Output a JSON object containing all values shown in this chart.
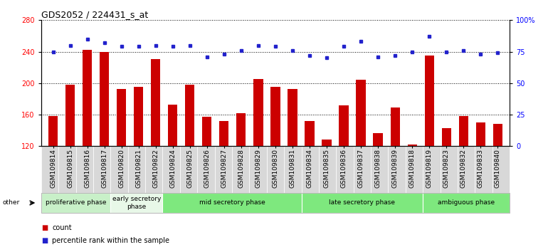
{
  "title": "GDS2052 / 224431_s_at",
  "samples": [
    "GSM109814",
    "GSM109815",
    "GSM109816",
    "GSM109817",
    "GSM109820",
    "GSM109821",
    "GSM109822",
    "GSM109824",
    "GSM109825",
    "GSM109826",
    "GSM109827",
    "GSM109828",
    "GSM109829",
    "GSM109830",
    "GSM109831",
    "GSM109834",
    "GSM109835",
    "GSM109836",
    "GSM109837",
    "GSM109838",
    "GSM109839",
    "GSM109818",
    "GSM109819",
    "GSM109823",
    "GSM109832",
    "GSM109833",
    "GSM109840"
  ],
  "counts": [
    158,
    198,
    242,
    240,
    193,
    195,
    231,
    173,
    198,
    157,
    152,
    162,
    205,
    195,
    193,
    152,
    128,
    172,
    204,
    137,
    169,
    122,
    235,
    143,
    158,
    150,
    148
  ],
  "percentiles": [
    75,
    80,
    85,
    82,
    79,
    79,
    80,
    79,
    80,
    71,
    73,
    76,
    80,
    79,
    76,
    72,
    70,
    79,
    83,
    71,
    72,
    75,
    87,
    75,
    76,
    73,
    74
  ],
  "phases": [
    {
      "label": "proliferative phase",
      "start": 0,
      "end": 4,
      "color": "#c8f0c8"
    },
    {
      "label": "early secretory\nphase",
      "start": 4,
      "end": 7,
      "color": "#e8f8e8"
    },
    {
      "label": "mid secretory phase",
      "start": 7,
      "end": 15,
      "color": "#7ee87e"
    },
    {
      "label": "late secretory phase",
      "start": 15,
      "end": 22,
      "color": "#7ee87e"
    },
    {
      "label": "ambiguous phase",
      "start": 22,
      "end": 27,
      "color": "#7ee87e"
    }
  ],
  "ymin": 120,
  "ymax": 280,
  "yticks_left": [
    120,
    160,
    200,
    240,
    280
  ],
  "yticks_right": [
    0,
    25,
    50,
    75,
    100
  ],
  "bar_color": "#cc0000",
  "dot_color": "#2222cc",
  "title_fontsize": 9,
  "axis_fontsize": 7,
  "label_fontsize": 6.5
}
